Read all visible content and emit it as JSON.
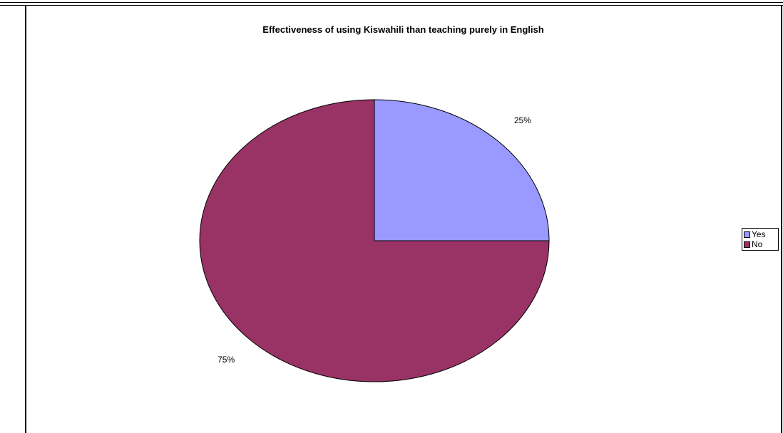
{
  "chart_data": {
    "type": "pie",
    "title": "Effectiveness of using Kiswahili than teaching purely in English",
    "categories": [
      "Yes",
      "No"
    ],
    "values": [
      25,
      75
    ],
    "data_labels": [
      "25%",
      "75%"
    ],
    "colors": [
      "#9999ff",
      "#993366"
    ],
    "legend_position": "right",
    "legend": [
      {
        "label": "Yes",
        "color": "#9999ff"
      },
      {
        "label": "No",
        "color": "#993366"
      }
    ]
  }
}
